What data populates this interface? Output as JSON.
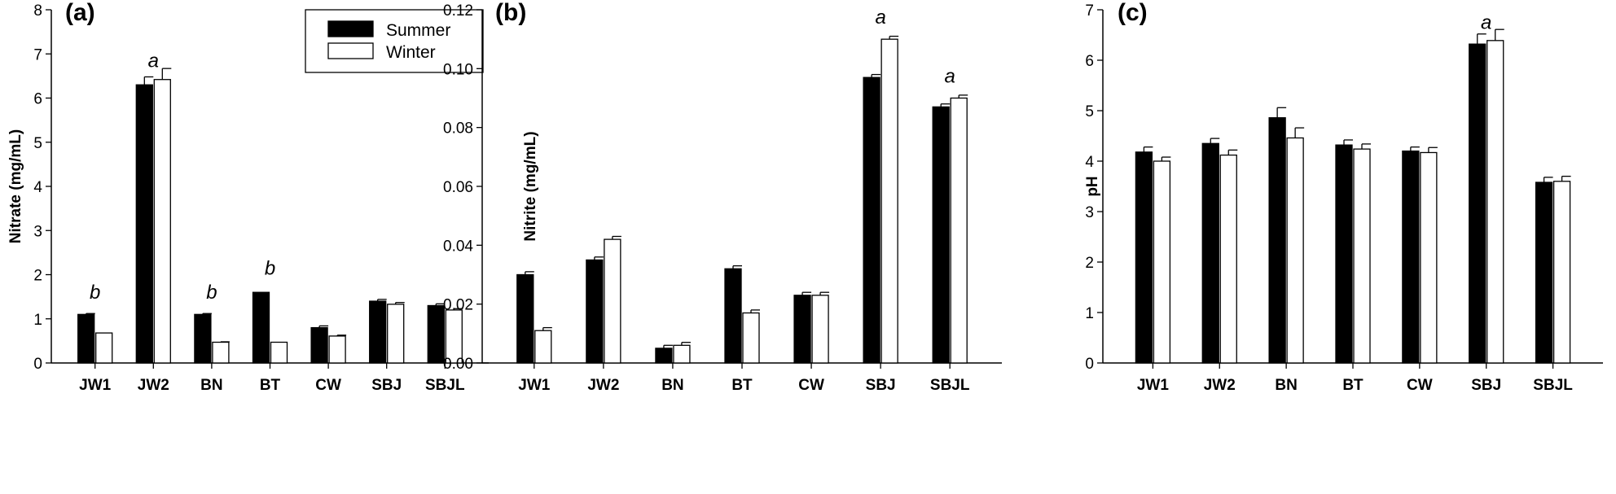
{
  "chart_data": [
    {
      "type": "bar",
      "panel_label": "(a)",
      "ylabel": "Nitrate (mg/mL)",
      "xlabel": "",
      "ylim": [
        0,
        8
      ],
      "yticks": [
        "0",
        "1",
        "2",
        "3",
        "4",
        "5",
        "6",
        "7",
        "8"
      ],
      "categories": [
        "JW1",
        "JW2",
        "BN",
        "BT",
        "CW",
        "SBJ",
        "SBJL"
      ],
      "series": [
        {
          "name": "Summer",
          "color": "#000000",
          "values": [
            1.1,
            6.3,
            1.1,
            1.6,
            0.8,
            1.4,
            1.3
          ],
          "errors": [
            0.02,
            0.18,
            0.02,
            0.0,
            0.04,
            0.04,
            0.04
          ]
        },
        {
          "name": "Winter",
          "color": "#ffffff",
          "values": [
            0.68,
            6.42,
            0.47,
            0.47,
            0.61,
            1.33,
            1.2
          ],
          "errors": [
            0.0,
            0.25,
            0.01,
            0.0,
            0.02,
            0.04,
            0.03
          ]
        }
      ],
      "annotations": [
        {
          "category": "JW1",
          "text": "b",
          "y": 1.6
        },
        {
          "category": "JW2",
          "text": "a",
          "y": 6.85
        },
        {
          "category": "BN",
          "text": "b",
          "y": 1.6
        },
        {
          "category": "BT",
          "text": "b",
          "y": 2.15
        }
      ],
      "legend": {
        "position": "top-right",
        "entries": [
          "Summer",
          "Winter"
        ]
      }
    },
    {
      "type": "bar",
      "panel_label": "(b)",
      "ylabel": "Nitrite (mg/mL)",
      "xlabel": "",
      "ylim": [
        0,
        0.12
      ],
      "yticks": [
        "0.00",
        "0.02",
        "0.04",
        "0.06",
        "0.08",
        "0.10",
        "0.12"
      ],
      "categories": [
        "JW1",
        "JW2",
        "BN",
        "BT",
        "CW",
        "SBJ",
        "SBJL"
      ],
      "series": [
        {
          "name": "Summer",
          "color": "#000000",
          "values": [
            0.03,
            0.035,
            0.005,
            0.032,
            0.023,
            0.097,
            0.087
          ],
          "errors": [
            0.001,
            0.001,
            0.001,
            0.001,
            0.001,
            0.001,
            0.001
          ]
        },
        {
          "name": "Winter",
          "color": "#ffffff",
          "values": [
            0.011,
            0.042,
            0.006,
            0.017,
            0.023,
            0.11,
            0.09
          ],
          "errors": [
            0.001,
            0.001,
            0.001,
            0.001,
            0.001,
            0.001,
            0.001
          ]
        }
      ],
      "annotations": [
        {
          "category": "SBJ",
          "text": "a",
          "y": 0.1175
        },
        {
          "category": "SBJL",
          "text": "a",
          "y": 0.0975
        }
      ]
    },
    {
      "type": "bar",
      "panel_label": "(c)",
      "ylabel": "pH",
      "xlabel": "",
      "ylim": [
        0,
        7
      ],
      "yticks": [
        "0",
        "1",
        "2",
        "3",
        "4",
        "5",
        "6",
        "7"
      ],
      "categories": [
        "JW1",
        "JW2",
        "BN",
        "BT",
        "CW",
        "SBJ",
        "SBJL"
      ],
      "series": [
        {
          "name": "Summer",
          "color": "#000000",
          "values": [
            4.18,
            4.35,
            4.86,
            4.32,
            4.2,
            6.32,
            3.58
          ],
          "errors": [
            0.1,
            0.1,
            0.2,
            0.1,
            0.08,
            0.2,
            0.1
          ]
        },
        {
          "name": "Winter",
          "color": "#ffffff",
          "values": [
            4.0,
            4.12,
            4.46,
            4.24,
            4.17,
            6.39,
            3.6
          ],
          "errors": [
            0.08,
            0.1,
            0.2,
            0.1,
            0.1,
            0.22,
            0.1
          ]
        }
      ],
      "annotations": [
        {
          "category": "SBJ",
          "text": "a",
          "y": 6.75
        }
      ]
    }
  ]
}
